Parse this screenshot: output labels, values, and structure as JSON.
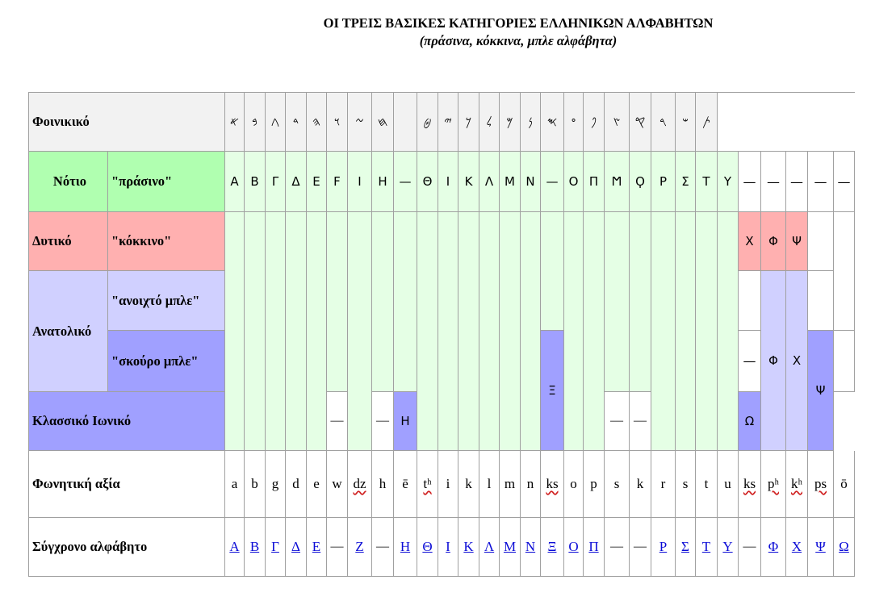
{
  "title": {
    "main": "ΟΙ ΤΡΕΙΣ ΒΑΣΙΚΕΣ ΚΑΤΗΓΟΡΙΕΣ ΕΛΛΗΝΙΚΩΝ ΑΛΦΑΒΗΤΩΝ",
    "sub": "(πράσινα, κόκκινα, μπλε αλφάβητα)"
  },
  "rows": {
    "phoenician": "Φοινικικό",
    "south": "Νότιο",
    "south_color": "\"πράσινο\"",
    "west": "Δυτικό",
    "west_color": "\"κόκκινο\"",
    "east": "Ανατολικό",
    "east_light": "\"ανοιχτό μπλε\"",
    "east_dark": "\"σκούρο μπλε\"",
    "ionic": "Κλασσικό Ιωνικό",
    "phonetic": "Φωνητική αξία",
    "modern": "Σύγχρονο αλφάβητο"
  },
  "phoenician": [
    "𐤀",
    "𐤁",
    "𐤂",
    "𐤃",
    "𐤄",
    "𐤅",
    "𐤆",
    "𐤇",
    "",
    "𐤈",
    "𐤉",
    "𐤊",
    "𐤋",
    "𐤌",
    "𐤍",
    "𐤎",
    "𐤏",
    "𐤐",
    "𐤑",
    "𐤒",
    "𐤓",
    "𐤔",
    "𐤕"
  ],
  "south": [
    "Α",
    "Β",
    "Γ",
    "Δ",
    "Ε",
    "Ϝ",
    "Ι",
    "Η",
    "—",
    "Θ",
    "Ι",
    "Κ",
    "Λ",
    "Μ",
    "Ν",
    "—",
    "Ο",
    "Π",
    "Ϻ",
    "Ϙ",
    "Ρ",
    "Σ",
    "Τ",
    "Υ",
    "—",
    "—",
    "—",
    "—",
    "—"
  ],
  "west": [
    "Χ",
    "Φ",
    "Ψ"
  ],
  "east_dark": [
    "—",
    "Φ",
    "Χ"
  ],
  "xi": "Ξ",
  "psi": "Ψ",
  "ionic": {
    "dash": "—",
    "eta": "Η",
    "omega": "Ω"
  },
  "phonetic": [
    "a",
    "b",
    "g",
    "d",
    "e",
    "w",
    "dz",
    "h",
    "ē",
    "tʰ",
    "i",
    "k",
    "l",
    "m",
    "n",
    "ks",
    "o",
    "p",
    "s",
    "k",
    "r",
    "s",
    "t",
    "u",
    "ks",
    "pʰ",
    "kʰ",
    "ps",
    "ō"
  ],
  "modern": [
    "Α",
    "Β",
    "Γ",
    "Δ",
    "Ε",
    "—",
    "Ζ",
    "—",
    "Η",
    "Θ",
    "Ι",
    "Κ",
    "Λ",
    "Μ",
    "Ν",
    "Ξ",
    "Ο",
    "Π",
    "—",
    "—",
    "Ρ",
    "Σ",
    "Τ",
    "Υ",
    "—",
    "Φ",
    "Χ",
    "Ψ",
    "Ω"
  ]
}
